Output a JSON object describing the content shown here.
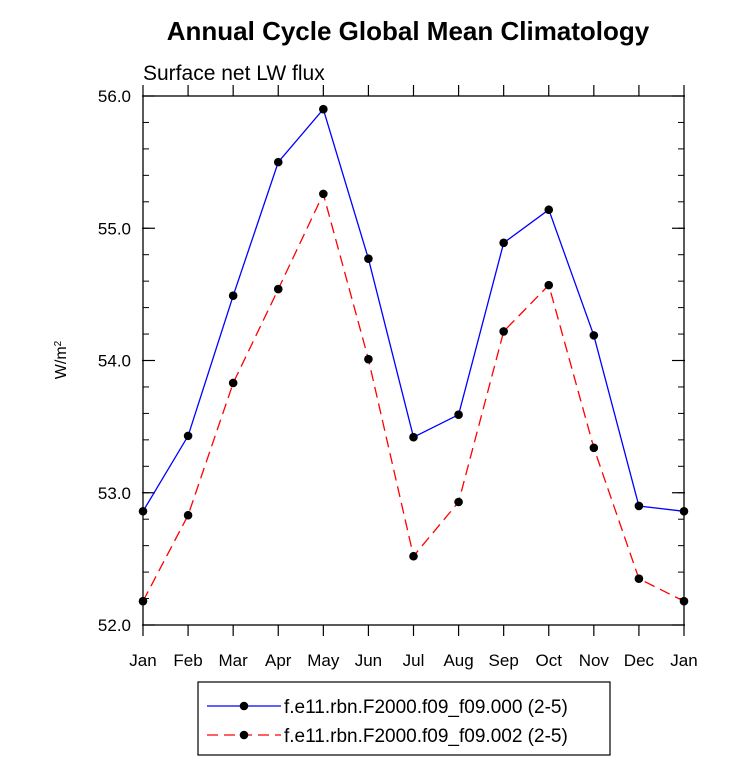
{
  "chart_data": {
    "type": "line",
    "title": "Annual Cycle Global Mean Climatology",
    "subtitle": "Surface net LW flux",
    "ylabel_base": "W/m",
    "ylabel_sup": "2",
    "xlabel": "",
    "categories": [
      "Jan",
      "Feb",
      "Mar",
      "Apr",
      "May",
      "Jun",
      "Jul",
      "Aug",
      "Sep",
      "Oct",
      "Nov",
      "Dec",
      "Jan"
    ],
    "ylim": [
      52.0,
      56.0
    ],
    "yticks": [
      52.0,
      53.0,
      54.0,
      55.0,
      56.0
    ],
    "ytick_labels": [
      "52.0",
      "53.0",
      "54.0",
      "55.0",
      "56.0"
    ],
    "legend_position": "bottom-center",
    "series": [
      {
        "name": "f.e11.rbn.F2000.f09_f09.000 (2-5)",
        "color": "#0000ff",
        "style": "solid",
        "values": [
          52.86,
          53.43,
          54.49,
          55.5,
          55.9,
          54.77,
          53.42,
          53.59,
          54.89,
          55.14,
          54.19,
          52.9,
          52.86
        ]
      },
      {
        "name": "f.e11.rbn.F2000.f09_f09.002 (2-5)",
        "color": "#ff0000",
        "style": "dashed",
        "values": [
          52.18,
          52.83,
          53.83,
          54.54,
          55.26,
          54.01,
          52.52,
          52.93,
          54.22,
          54.57,
          53.34,
          52.35,
          52.18
        ]
      }
    ]
  }
}
